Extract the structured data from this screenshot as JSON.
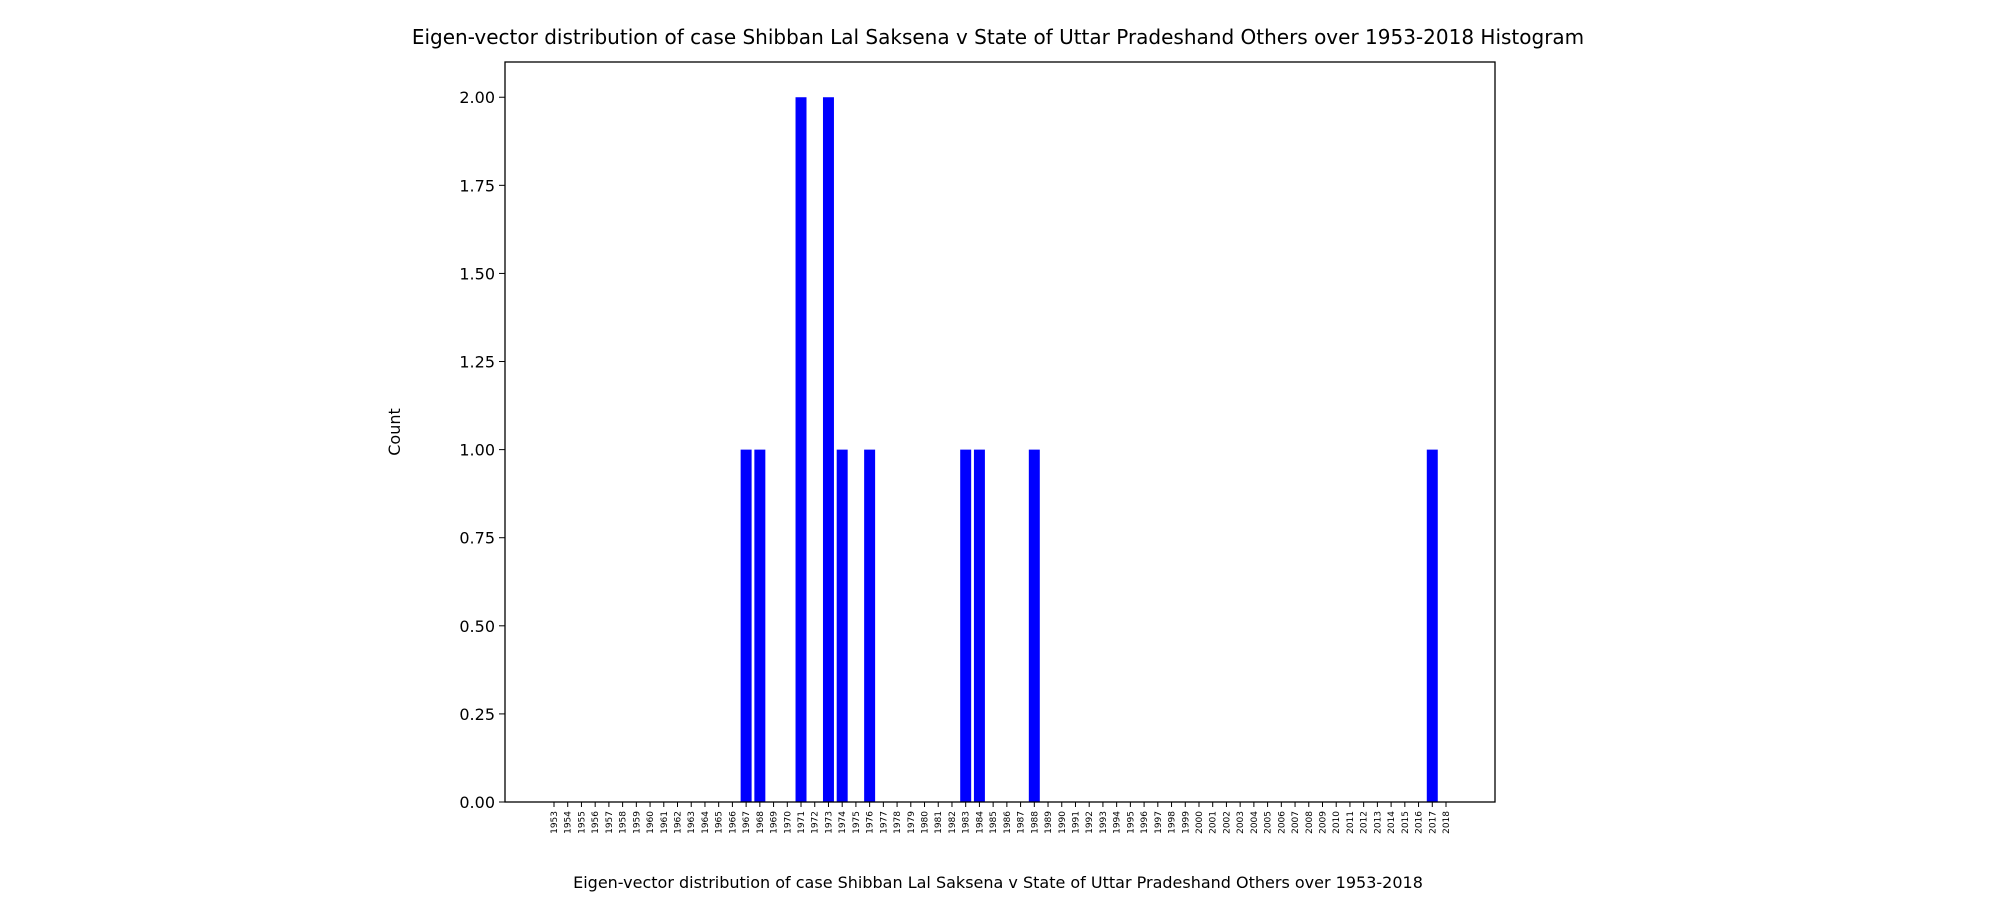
{
  "chart_data": {
    "type": "bar",
    "title": "Eigen-vector distribution of case Shibban Lal Saksena v State of Uttar Pradeshand Others over 1953-2018 Histogram",
    "xlabel": "Eigen-vector distribution of case Shibban Lal Saksena v State of Uttar Pradeshand Others over 1953-2018",
    "ylabel": "Count",
    "ylim": [
      0,
      2.1
    ],
    "yticks": [
      "0.00",
      "0.25",
      "0.50",
      "0.75",
      "1.00",
      "1.25",
      "1.50",
      "1.75",
      "2.00"
    ],
    "bar_color": "#0000ff",
    "grid": false,
    "categories": [
      "1953",
      "1954",
      "1955",
      "1956",
      "1957",
      "1958",
      "1959",
      "1960",
      "1961",
      "1962",
      "1963",
      "1964",
      "1965",
      "1966",
      "1967",
      "1968",
      "1969",
      "1970",
      "1971",
      "1972",
      "1973",
      "1974",
      "1975",
      "1976",
      "1977",
      "1978",
      "1979",
      "1980",
      "1981",
      "1982",
      "1983",
      "1984",
      "1985",
      "1986",
      "1987",
      "1988",
      "1989",
      "1990",
      "1991",
      "1992",
      "1993",
      "1994",
      "1995",
      "1996",
      "1997",
      "1998",
      "1999",
      "2000",
      "2001",
      "2002",
      "2003",
      "2004",
      "2005",
      "2006",
      "2007",
      "2008",
      "2009",
      "2010",
      "2011",
      "2012",
      "2013",
      "2014",
      "2015",
      "2016",
      "2017",
      "2018"
    ],
    "values": [
      0,
      0,
      0,
      0,
      0,
      0,
      0,
      0,
      0,
      0,
      0,
      0,
      0,
      0,
      1,
      1,
      0,
      0,
      2,
      0,
      2,
      1,
      0,
      1,
      0,
      0,
      0,
      0,
      0,
      0,
      1,
      1,
      0,
      0,
      0,
      1,
      0,
      0,
      0,
      0,
      0,
      0,
      0,
      0,
      0,
      0,
      0,
      0,
      0,
      0,
      0,
      0,
      0,
      0,
      0,
      0,
      0,
      0,
      0,
      0,
      0,
      0,
      0,
      0,
      1,
      0
    ]
  }
}
